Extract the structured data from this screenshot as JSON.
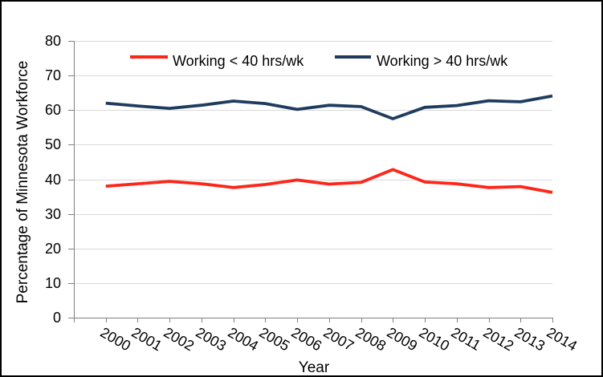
{
  "chart_data": {
    "type": "line",
    "x": [
      2000,
      2001,
      2002,
      2003,
      2004,
      2005,
      2006,
      2007,
      2008,
      2009,
      2010,
      2011,
      2012,
      2013,
      2014
    ],
    "series": [
      {
        "name": "Working < 40 hrs/wk",
        "color": "#FF2519",
        "values": [
          38.0,
          38.7,
          39.4,
          38.7,
          37.6,
          38.5,
          39.8,
          38.6,
          39.1,
          42.8,
          39.2,
          38.7,
          37.6,
          37.9,
          36.2
        ]
      },
      {
        "name": "Working > 40 hrs/wk",
        "color": "#1F3C5F",
        "values": [
          62.0,
          61.2,
          60.5,
          61.4,
          62.6,
          61.9,
          60.2,
          61.4,
          61.0,
          57.5,
          60.8,
          61.3,
          62.7,
          62.4,
          64.1
        ]
      }
    ],
    "title": "",
    "xlabel": "Year",
    "ylabel": "Percentage of Minnesota Workforce",
    "ylim": [
      0,
      80
    ],
    "yticks": [
      0,
      10,
      20,
      30,
      40,
      50,
      60,
      70,
      80
    ],
    "grid": true,
    "legend_position": "top",
    "colors": {
      "gridline": "#D9D9D9",
      "axis": "#808080",
      "text": "#000000",
      "border": "#000000"
    }
  }
}
